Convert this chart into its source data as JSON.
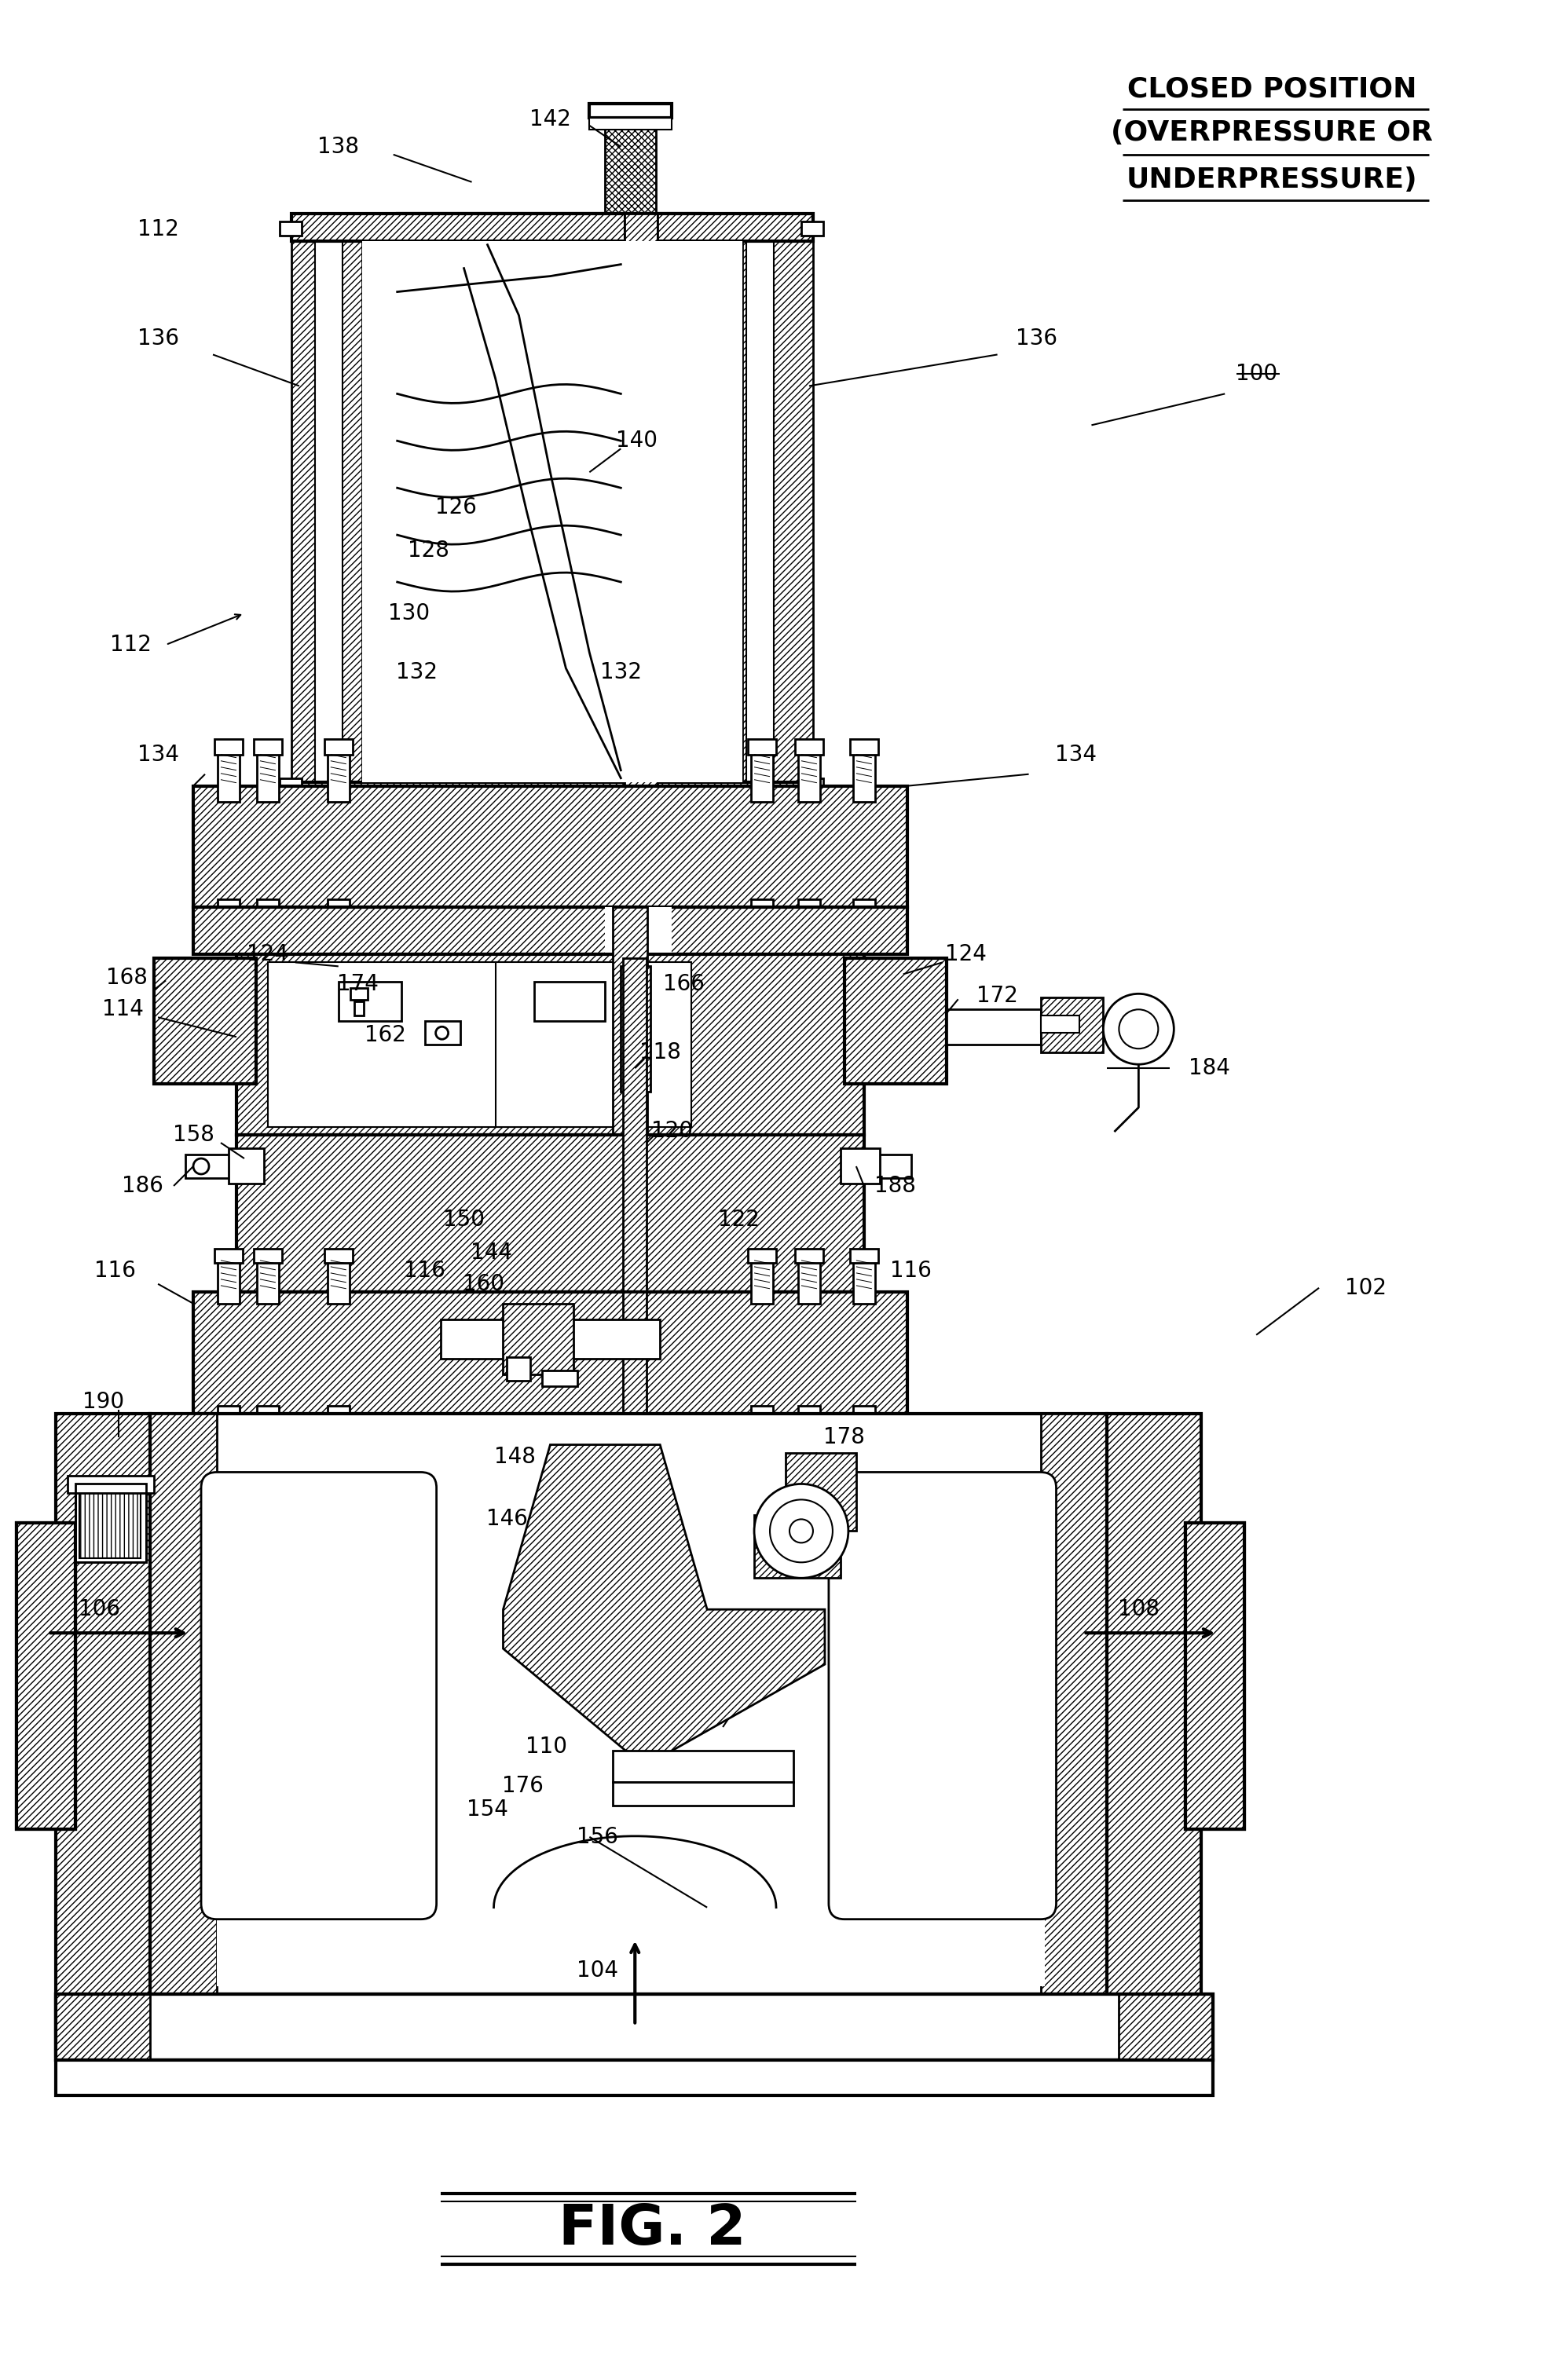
{
  "bg_color": "#ffffff",
  "line_color": "#000000",
  "fig_label": "FIG. 2",
  "closed_position_lines": [
    "CLOSED POSITION",
    "(OVERPRESSURE OR",
    "UNDERPRESSURE)"
  ],
  "label_fontsize": 20,
  "title_fontsize": 26
}
